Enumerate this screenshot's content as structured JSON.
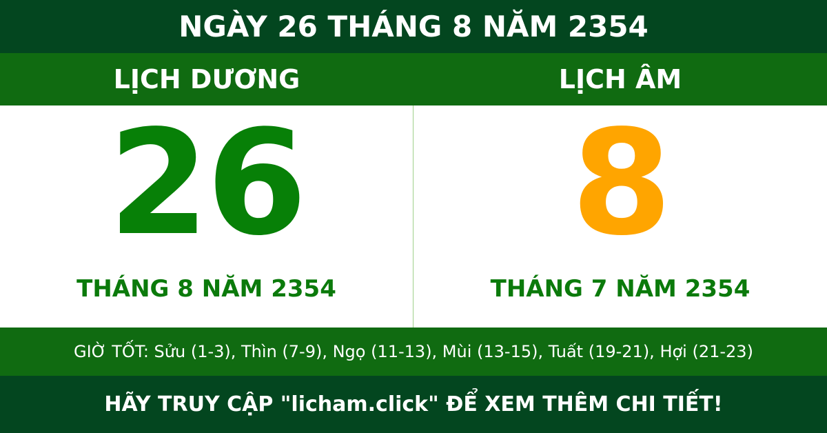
{
  "header": {
    "title": "NGÀY 26 THÁNG 8 NĂM 2354"
  },
  "solar": {
    "label": "LỊCH DƯƠNG",
    "day": "26",
    "month_year": "THÁNG 8 NĂM 2354",
    "color": "#078007"
  },
  "lunar": {
    "label": "LỊCH ÂM",
    "day": "8",
    "month_year": "THÁNG 7 NĂM 2354",
    "color": "#ffa500"
  },
  "good_hours": "GIỜ TỐT: Sửu (1-3), Thìn (7-9), Ngọ (11-13), Mùi (13-15), Tuất (19-21), Hợi (21-23)",
  "footer": {
    "text": "HÃY TRUY CẬP \"licham.click\" ĐỂ XEM THÊM CHI TIẾT!"
  }
}
